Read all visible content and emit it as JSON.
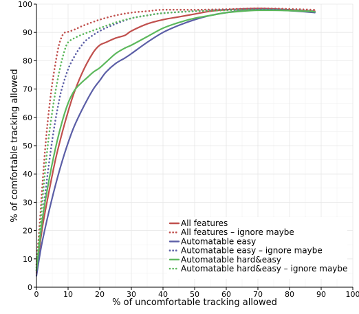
{
  "chart_data": {
    "type": "line",
    "title": "",
    "xlabel": "% of uncomfortable tracking allowed",
    "ylabel": "% of comfortable tracking allowed",
    "xlim": [
      0,
      100
    ],
    "ylim": [
      0,
      100
    ],
    "xticks": [
      0,
      10,
      20,
      30,
      40,
      50,
      60,
      70,
      80,
      90,
      100
    ],
    "yticks": [
      0,
      10,
      20,
      30,
      40,
      50,
      60,
      70,
      80,
      90,
      100
    ],
    "grid": true,
    "legend_position": "bottom-right",
    "series": [
      {
        "name": "All features",
        "style": "solid",
        "color": "#c0504d",
        "x": [
          0,
          1,
          2,
          4,
          6,
          8,
          10,
          12,
          15,
          18,
          20,
          22,
          25,
          28,
          30,
          35,
          40,
          45,
          50,
          55,
          60,
          65,
          70,
          75,
          80,
          85,
          88
        ],
        "y": [
          5,
          14,
          22,
          34,
          45,
          54,
          62,
          69,
          77,
          83,
          85.5,
          86.5,
          88,
          89,
          90.5,
          93,
          94.5,
          95.5,
          96.5,
          97.5,
          98,
          98.3,
          98.5,
          98.3,
          98,
          97.7,
          97.5
        ]
      },
      {
        "name": "All features – ignore maybe",
        "style": "dotted",
        "color": "#c0504d",
        "x": [
          0,
          1,
          2,
          3,
          4,
          5,
          6,
          7,
          8,
          9,
          10,
          12,
          15,
          20,
          25,
          30,
          35,
          40,
          50,
          60,
          70,
          80,
          88
        ],
        "y": [
          8,
          22,
          38,
          52,
          63,
          72,
          79,
          85,
          88.5,
          90,
          90.2,
          91,
          92.5,
          94.5,
          96,
          97,
          97.5,
          98,
          98,
          98.2,
          98.5,
          98.3,
          98
        ]
      },
      {
        "name": "Automatable easy",
        "style": "solid",
        "color": "#5b5ea6",
        "x": [
          0,
          1,
          2,
          4,
          6,
          8,
          10,
          12,
          15,
          18,
          20,
          22,
          25,
          28,
          30,
          35,
          40,
          45,
          50,
          55,
          60,
          65,
          70,
          75,
          80,
          85,
          88
        ],
        "y": [
          4,
          11,
          17,
          27,
          36,
          44,
          51,
          57,
          64,
          70,
          73,
          76,
          79,
          81,
          82.5,
          86.5,
          90,
          92.5,
          94.5,
          96,
          97,
          97.7,
          98,
          98,
          97.7,
          97.3,
          97
        ]
      },
      {
        "name": "Automatable easy – ignore maybe",
        "style": "dotted",
        "color": "#5b5ea6",
        "x": [
          0,
          1,
          2,
          3,
          4,
          5,
          6,
          7,
          8,
          10,
          12,
          14,
          16,
          20,
          25,
          30,
          35,
          40,
          50,
          60,
          70,
          80,
          88
        ],
        "y": [
          6,
          15,
          25,
          35,
          44,
          52,
          59,
          65,
          70,
          77,
          81.5,
          85,
          87.5,
          90.5,
          93,
          95,
          96,
          96.8,
          97.5,
          98,
          98.2,
          98,
          97.5
        ]
      },
      {
        "name": "Automatable hard&easy",
        "style": "solid",
        "color": "#5cb85c",
        "x": [
          0,
          1,
          2,
          4,
          6,
          8,
          10,
          12,
          14,
          16,
          18,
          20,
          22,
          25,
          28,
          30,
          35,
          40,
          45,
          50,
          55,
          60,
          65,
          70,
          75,
          80,
          85,
          88
        ],
        "y": [
          6,
          16,
          25,
          38,
          49,
          58,
          65,
          69.5,
          72,
          74,
          76,
          77.5,
          79.5,
          82.5,
          84.5,
          85.5,
          88.5,
          91.5,
          93.5,
          95,
          96,
          97,
          97.5,
          97.8,
          97.8,
          97.7,
          97.5,
          97.3
        ]
      },
      {
        "name": "Automatable hard&easy – ignore maybe",
        "style": "dotted",
        "color": "#5cb85c",
        "x": [
          0,
          1,
          2,
          3,
          4,
          5,
          6,
          7,
          8,
          9,
          10,
          12,
          15,
          20,
          25,
          30,
          35,
          40,
          50,
          60,
          70,
          80,
          88
        ],
        "y": [
          7,
          19,
          32,
          44,
          54,
          62,
          69,
          75,
          80,
          84,
          86.5,
          88,
          89.5,
          91.5,
          93.5,
          95,
          96,
          96.8,
          97.5,
          97.8,
          98,
          97.8,
          97.5
        ]
      }
    ]
  }
}
